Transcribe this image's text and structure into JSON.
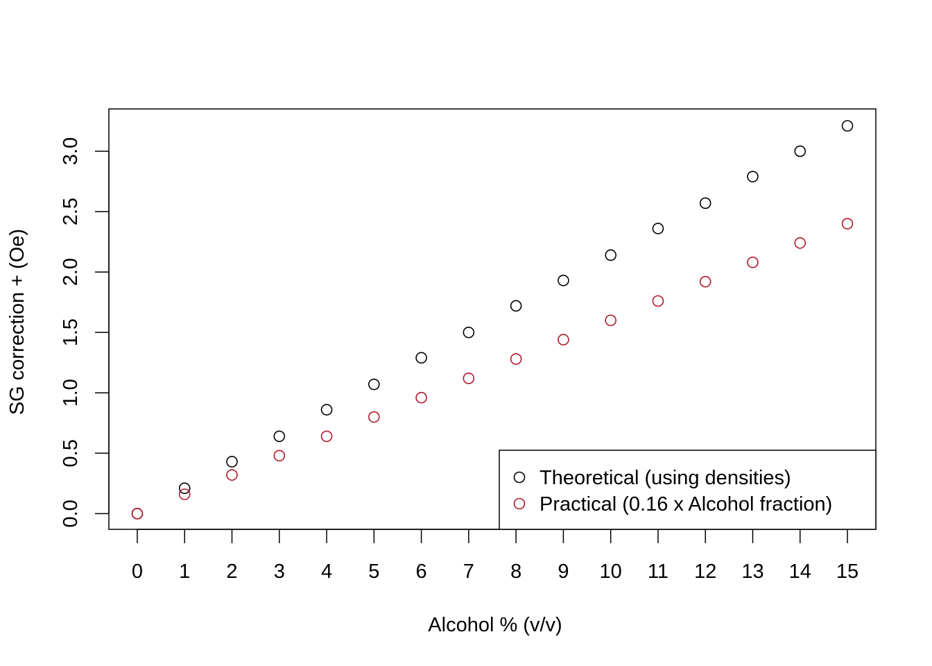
{
  "chart_data": {
    "type": "scatter",
    "title": "",
    "xlabel": "Alcohol % (v/v)",
    "ylabel": "SG correction + (Oe)",
    "xlim": [
      -0.6,
      15.6
    ],
    "ylim": [
      -0.13,
      3.35
    ],
    "x_ticks": [
      0,
      1,
      2,
      3,
      4,
      5,
      6,
      7,
      8,
      9,
      10,
      11,
      12,
      13,
      14,
      15
    ],
    "x_tick_labels": [
      "0",
      "1",
      "2",
      "3",
      "4",
      "5",
      "6",
      "7",
      "8",
      "9",
      "10",
      "11",
      "12",
      "13",
      "14",
      "15"
    ],
    "y_ticks": [
      0.0,
      0.5,
      1.0,
      1.5,
      2.0,
      2.5,
      3.0
    ],
    "y_tick_labels": [
      "0.0",
      "0.5",
      "1.0",
      "1.5",
      "2.0",
      "2.5",
      "3.0"
    ],
    "grid": false,
    "legend_position": "bottom-right",
    "x": [
      0,
      1,
      2,
      3,
      4,
      5,
      6,
      7,
      8,
      9,
      10,
      11,
      12,
      13,
      14,
      15
    ],
    "series": [
      {
        "name": "Theoretical (using densities)",
        "color": "#000000",
        "marker": "open-circle",
        "values": [
          0.0,
          0.21,
          0.43,
          0.64,
          0.86,
          1.07,
          1.29,
          1.5,
          1.72,
          1.93,
          2.14,
          2.36,
          2.57,
          2.79,
          3.0,
          3.21
        ]
      },
      {
        "name": "Practical (0.16 x Alcohol fraction)",
        "color": "#b2182b",
        "marker": "open-circle",
        "values": [
          0.0,
          0.16,
          0.32,
          0.48,
          0.64,
          0.8,
          0.96,
          1.12,
          1.28,
          1.44,
          1.6,
          1.76,
          1.92,
          2.08,
          2.24,
          2.4
        ]
      }
    ]
  }
}
